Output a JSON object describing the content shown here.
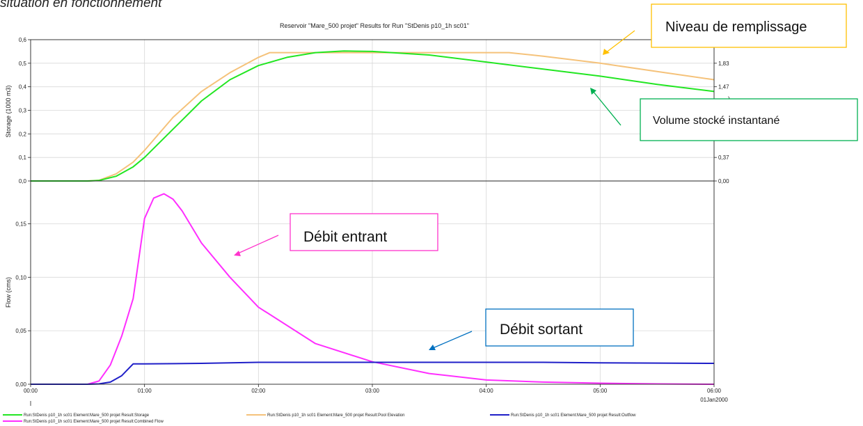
{
  "caption": "situation en fonctionnement",
  "colors": {
    "storage": "#22e622",
    "pool_elevation": "#f5c27a",
    "outflow": "#1f1fc8",
    "combined_flow": "#ff2eff",
    "anno_yellow": "#ffc000",
    "anno_green": "#00b050",
    "anno_magenta": "#ff33cc",
    "anno_blue": "#0070c0"
  },
  "chart_data": {
    "type": "line",
    "title": "Reservoir \"Mare_500 projet\" Results for Run \"StDenis p10_1h sc01\"",
    "x_ticks": [
      "00:00",
      "01:00",
      "02:00",
      "03:00",
      "04:00",
      "05:00",
      "06:00"
    ],
    "x_date_label": "01Jan2000",
    "top_panel": {
      "ylabel": "Storage (1000 m3)",
      "ylim": [
        0,
        0.6
      ],
      "y_ticks": [
        "0,0",
        "0,1",
        "0,2",
        "0,3",
        "0,4",
        "0,5",
        "0,6"
      ],
      "right_ylabel_fragment": ")",
      "right_ticks": [
        {
          "label": "0,00",
          "at": 0
        },
        {
          "label": "0,37",
          "at": 0.1
        },
        {
          "label": "1,47",
          "at": 0.4
        },
        {
          "label": "1,83",
          "at": 0.5
        }
      ],
      "series": [
        {
          "name": "Run:StDenis p10_1h sc01 Element:Mare_500 projet Result:Storage",
          "color": "#22e622",
          "x": [
            0,
            0.5,
            0.6,
            0.75,
            0.9,
            1.0,
            1.25,
            1.5,
            1.75,
            2.0,
            2.25,
            2.5,
            2.75,
            3.0,
            3.5,
            4.0,
            4.5,
            5.0,
            5.5,
            6.0
          ],
          "values": [
            0,
            0,
            0.002,
            0.02,
            0.06,
            0.1,
            0.22,
            0.34,
            0.43,
            0.49,
            0.525,
            0.545,
            0.552,
            0.55,
            0.535,
            0.505,
            0.475,
            0.445,
            0.41,
            0.38
          ]
        },
        {
          "name": "Run:StDenis p10_1h sc01 Element:Mare_500 projet Result:Pool Elevation",
          "color": "#f5c27a",
          "x": [
            0,
            0.5,
            0.6,
            0.75,
            0.9,
            1.0,
            1.25,
            1.5,
            1.75,
            2.0,
            2.1,
            3.0,
            4.0,
            4.2,
            4.5,
            5.0,
            5.5,
            6.0
          ],
          "values": [
            0,
            0,
            0.003,
            0.03,
            0.08,
            0.13,
            0.27,
            0.38,
            0.46,
            0.525,
            0.545,
            0.545,
            0.545,
            0.545,
            0.53,
            0.5,
            0.465,
            0.43
          ]
        }
      ]
    },
    "bottom_panel": {
      "ylabel": "Flow (cms)",
      "ylim": [
        0,
        0.19
      ],
      "y_ticks": [
        {
          "label": "0,00",
          "value": 0
        },
        {
          "label": "0,05",
          "value": 0.05
        },
        {
          "label": "0,10",
          "value": 0.1
        },
        {
          "label": "0,15",
          "value": 0.15
        }
      ],
      "series": [
        {
          "name": "Run:StDenis p10_1h sc01 Element:Mare_500 projet Result:Outflow",
          "color": "#1f1fc8",
          "x": [
            0,
            0.5,
            0.6,
            0.7,
            0.8,
            0.9,
            1.0,
            1.5,
            2.0,
            2.5,
            3.0,
            3.5,
            4.0,
            4.5,
            5.0,
            5.5,
            6.0
          ],
          "values": [
            0,
            0,
            0.0003,
            0.002,
            0.008,
            0.019,
            0.019,
            0.0195,
            0.0205,
            0.0205,
            0.0205,
            0.0205,
            0.0205,
            0.0205,
            0.02,
            0.0198,
            0.0195
          ]
        },
        {
          "name": "Run:StDenis p10_1h sc01 Element:Mare_500 projet Result:Combined Flow",
          "color": "#ff2eff",
          "x": [
            0,
            0.5,
            0.6,
            0.7,
            0.8,
            0.9,
            1.0,
            1.08,
            1.17,
            1.25,
            1.33,
            1.5,
            1.75,
            2.0,
            2.5,
            3.0,
            3.5,
            4.0,
            4.5,
            5.0,
            5.5,
            6.0
          ],
          "values": [
            0,
            0,
            0.003,
            0.018,
            0.045,
            0.08,
            0.155,
            0.174,
            0.178,
            0.173,
            0.162,
            0.132,
            0.1,
            0.072,
            0.038,
            0.021,
            0.01,
            0.004,
            0.002,
            0.001,
            0.0003,
            0
          ]
        }
      ]
    },
    "legend_placement": "bottom",
    "grid": true
  },
  "annotations": [
    {
      "text": "Niveau de remplissage",
      "color": "#ffc000"
    },
    {
      "text": "Volume stocké instantané",
      "color": "#00b050"
    },
    {
      "text": "Débit entrant",
      "color": "#ff33cc"
    },
    {
      "text": "Débit sortant",
      "color": "#0070c0"
    }
  ]
}
